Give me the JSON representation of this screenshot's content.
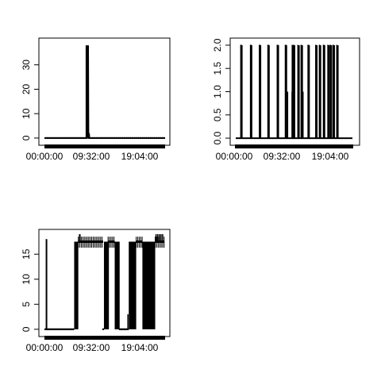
{
  "chart_data": [
    {
      "type": "line",
      "x_tick_labels": [
        "00:00:00",
        "09:32:00",
        "19:04:00"
      ],
      "x_tick_values_min": [
        0,
        572,
        1144
      ],
      "x_range_min": [
        0,
        1440
      ],
      "y_tick_labels": [
        "0",
        "10",
        "20",
        "30"
      ],
      "y_tick_values": [
        0,
        10,
        20,
        30
      ],
      "ylim": [
        -1,
        39
      ],
      "x_unit": "minutes since midnight",
      "series": [
        {
          "x": [
            0,
            498,
            498,
            503,
            503,
            508,
            508,
            514,
            514,
            518,
            518,
            522,
            522,
            528,
            528,
            532,
            532,
            1440
          ],
          "y": [
            0,
            0,
            38,
            0,
            1,
            38,
            1,
            1,
            2,
            1,
            38,
            0,
            1,
            1,
            2,
            1,
            0,
            0
          ]
        }
      ]
    },
    {
      "type": "line",
      "x_tick_labels": [
        "00:00:00",
        "09:32:00",
        "19:04:00"
      ],
      "x_tick_values_min": [
        0,
        572,
        1144
      ],
      "x_range_min": [
        0,
        1440
      ],
      "y_tick_labels": [
        "0.0",
        "0.5",
        "1.0",
        "1.5",
        "2.0"
      ],
      "y_tick_values": [
        0,
        0.5,
        1.0,
        1.5,
        2.0
      ],
      "ylim": [
        -0.05,
        2.05
      ],
      "x_unit": "minutes since midnight",
      "spike_level": 2,
      "spike_bands_min": [
        [
          55,
          75
        ],
        [
          175,
          195
        ],
        [
          285,
          305
        ],
        [
          390,
          410
        ],
        [
          505,
          525
        ],
        [
          605,
          625
        ],
        [
          690,
          700
        ],
        [
          705,
          720
        ],
        [
          760,
          770
        ],
        [
          800,
          815
        ],
        [
          885,
          905
        ],
        [
          980,
          995
        ],
        [
          1025,
          1040
        ],
        [
          1075,
          1095
        ],
        [
          1130,
          1145
        ],
        [
          1160,
          1175
        ],
        [
          1195,
          1210
        ],
        [
          1240,
          1250
        ]
      ],
      "mid_spikes_min": [
        [
          640,
          1.0
        ],
        [
          695,
          1.0
        ],
        [
          770,
          1.0
        ],
        [
          830,
          1.0
        ]
      ]
    },
    {
      "type": "line",
      "x_tick_labels": [
        "00:00:00",
        "09:32:00",
        "19:04:00"
      ],
      "x_tick_values_min": [
        0,
        572,
        1144
      ],
      "x_range_min": [
        0,
        1440
      ],
      "y_tick_labels": [
        "0",
        "5",
        "10",
        "15"
      ],
      "y_tick_values": [
        0,
        5,
        10,
        15
      ],
      "ylim": [
        -0.5,
        19
      ],
      "x_unit": "minutes since midnight",
      "high_level": 17.5,
      "low_level": 0,
      "segments_min": [
        {
          "x0": 0,
          "x1": 15,
          "level": "low"
        },
        {
          "x0": 15,
          "x1": 17,
          "level": "spike18"
        },
        {
          "x0": 17,
          "x1": 350,
          "level": "low"
        },
        {
          "x0": 350,
          "x1": 400,
          "level": "band"
        },
        {
          "x0": 400,
          "x1": 700,
          "level": "high"
        },
        {
          "x0": 700,
          "x1": 710,
          "level": "low"
        },
        {
          "x0": 710,
          "x1": 760,
          "level": "band"
        },
        {
          "x0": 760,
          "x1": 840,
          "level": "high"
        },
        {
          "x0": 840,
          "x1": 900,
          "level": "band"
        },
        {
          "x0": 900,
          "x1": 1000,
          "level": "low"
        },
        {
          "x0": 1000,
          "x1": 1010,
          "level": "mid3"
        },
        {
          "x0": 1010,
          "x1": 1100,
          "level": "band"
        },
        {
          "x0": 1100,
          "x1": 1175,
          "level": "high"
        },
        {
          "x0": 1175,
          "x1": 1330,
          "level": "band"
        },
        {
          "x0": 1330,
          "x1": 1440,
          "level": "high"
        }
      ]
    }
  ]
}
